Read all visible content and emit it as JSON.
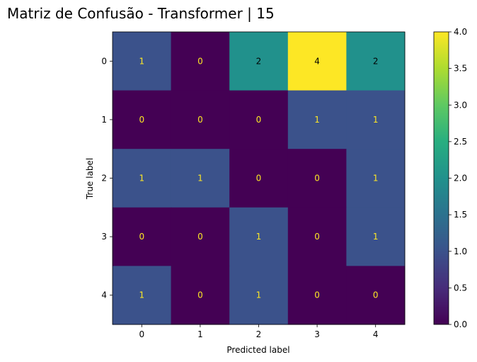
{
  "chart_data": {
    "type": "heatmap",
    "title": "Matriz de Confusão - Transformer | 15",
    "xlabel": "Predicted label",
    "ylabel": "True label",
    "x_categories": [
      "0",
      "1",
      "2",
      "3",
      "4"
    ],
    "y_categories": [
      "0",
      "1",
      "2",
      "3",
      "4"
    ],
    "matrix": [
      [
        1,
        0,
        2,
        4,
        2
      ],
      [
        0,
        0,
        0,
        1,
        1
      ],
      [
        1,
        1,
        0,
        0,
        1
      ],
      [
        0,
        0,
        1,
        0,
        1
      ],
      [
        1,
        0,
        1,
        0,
        0
      ]
    ],
    "colorbar": {
      "min": 0.0,
      "max": 4.0,
      "ticks": [
        "0.0",
        "0.5",
        "1.0",
        "1.5",
        "2.0",
        "2.5",
        "3.0",
        "3.5",
        "4.0"
      ],
      "colormap": "viridis"
    },
    "colors": {
      "low_text": "#fde725",
      "high_text": "#000000"
    }
  }
}
